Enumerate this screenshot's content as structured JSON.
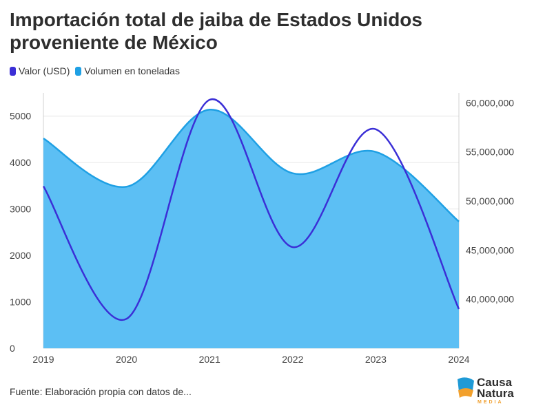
{
  "title": "Importación total de jaiba de Estados Unidos proveniente de México",
  "legend": {
    "valor": "Valor (USD)",
    "volumen": "Volumen en toneladas"
  },
  "colors": {
    "valor": "#3b2fd6",
    "volumen_fill": "#5cbff4",
    "volumen_line": "#1fa0e4",
    "grid": "#e6e6e6"
  },
  "footer": "Fuente: Elaboración propia con datos de...",
  "logo": {
    "line1": "Causa",
    "line2": "Natura",
    "line3": "MEDIA"
  },
  "chart_data": {
    "type": "area",
    "x": [
      "2019",
      "2020",
      "2021",
      "2022",
      "2023",
      "2024"
    ],
    "series": [
      {
        "name": "Volumen en toneladas",
        "type": "area",
        "axis": "left",
        "values": [
          4520,
          3480,
          5140,
          3770,
          4230,
          2730
        ]
      },
      {
        "name": "Valor (USD)",
        "type": "line",
        "axis": "right",
        "values": [
          51500000,
          38000000,
          60300000,
          45300000,
          57300000,
          39000000
        ]
      }
    ],
    "y_left": {
      "min": 0,
      "max": 5500,
      "ticks": [
        0,
        1000,
        2000,
        3000,
        4000,
        5000
      ],
      "tick_labels": [
        "0",
        "1000",
        "2000",
        "3000",
        "4000",
        "5000"
      ]
    },
    "y_right": {
      "min": 35000000,
      "max": 61000000,
      "ticks": [
        40000000,
        45000000,
        50000000,
        55000000,
        60000000
      ],
      "tick_labels": [
        "40,000,000",
        "45,000,000",
        "50,000,000",
        "55,000,000",
        "60,000,000"
      ]
    },
    "grid": true,
    "legend_position": "top-left"
  }
}
